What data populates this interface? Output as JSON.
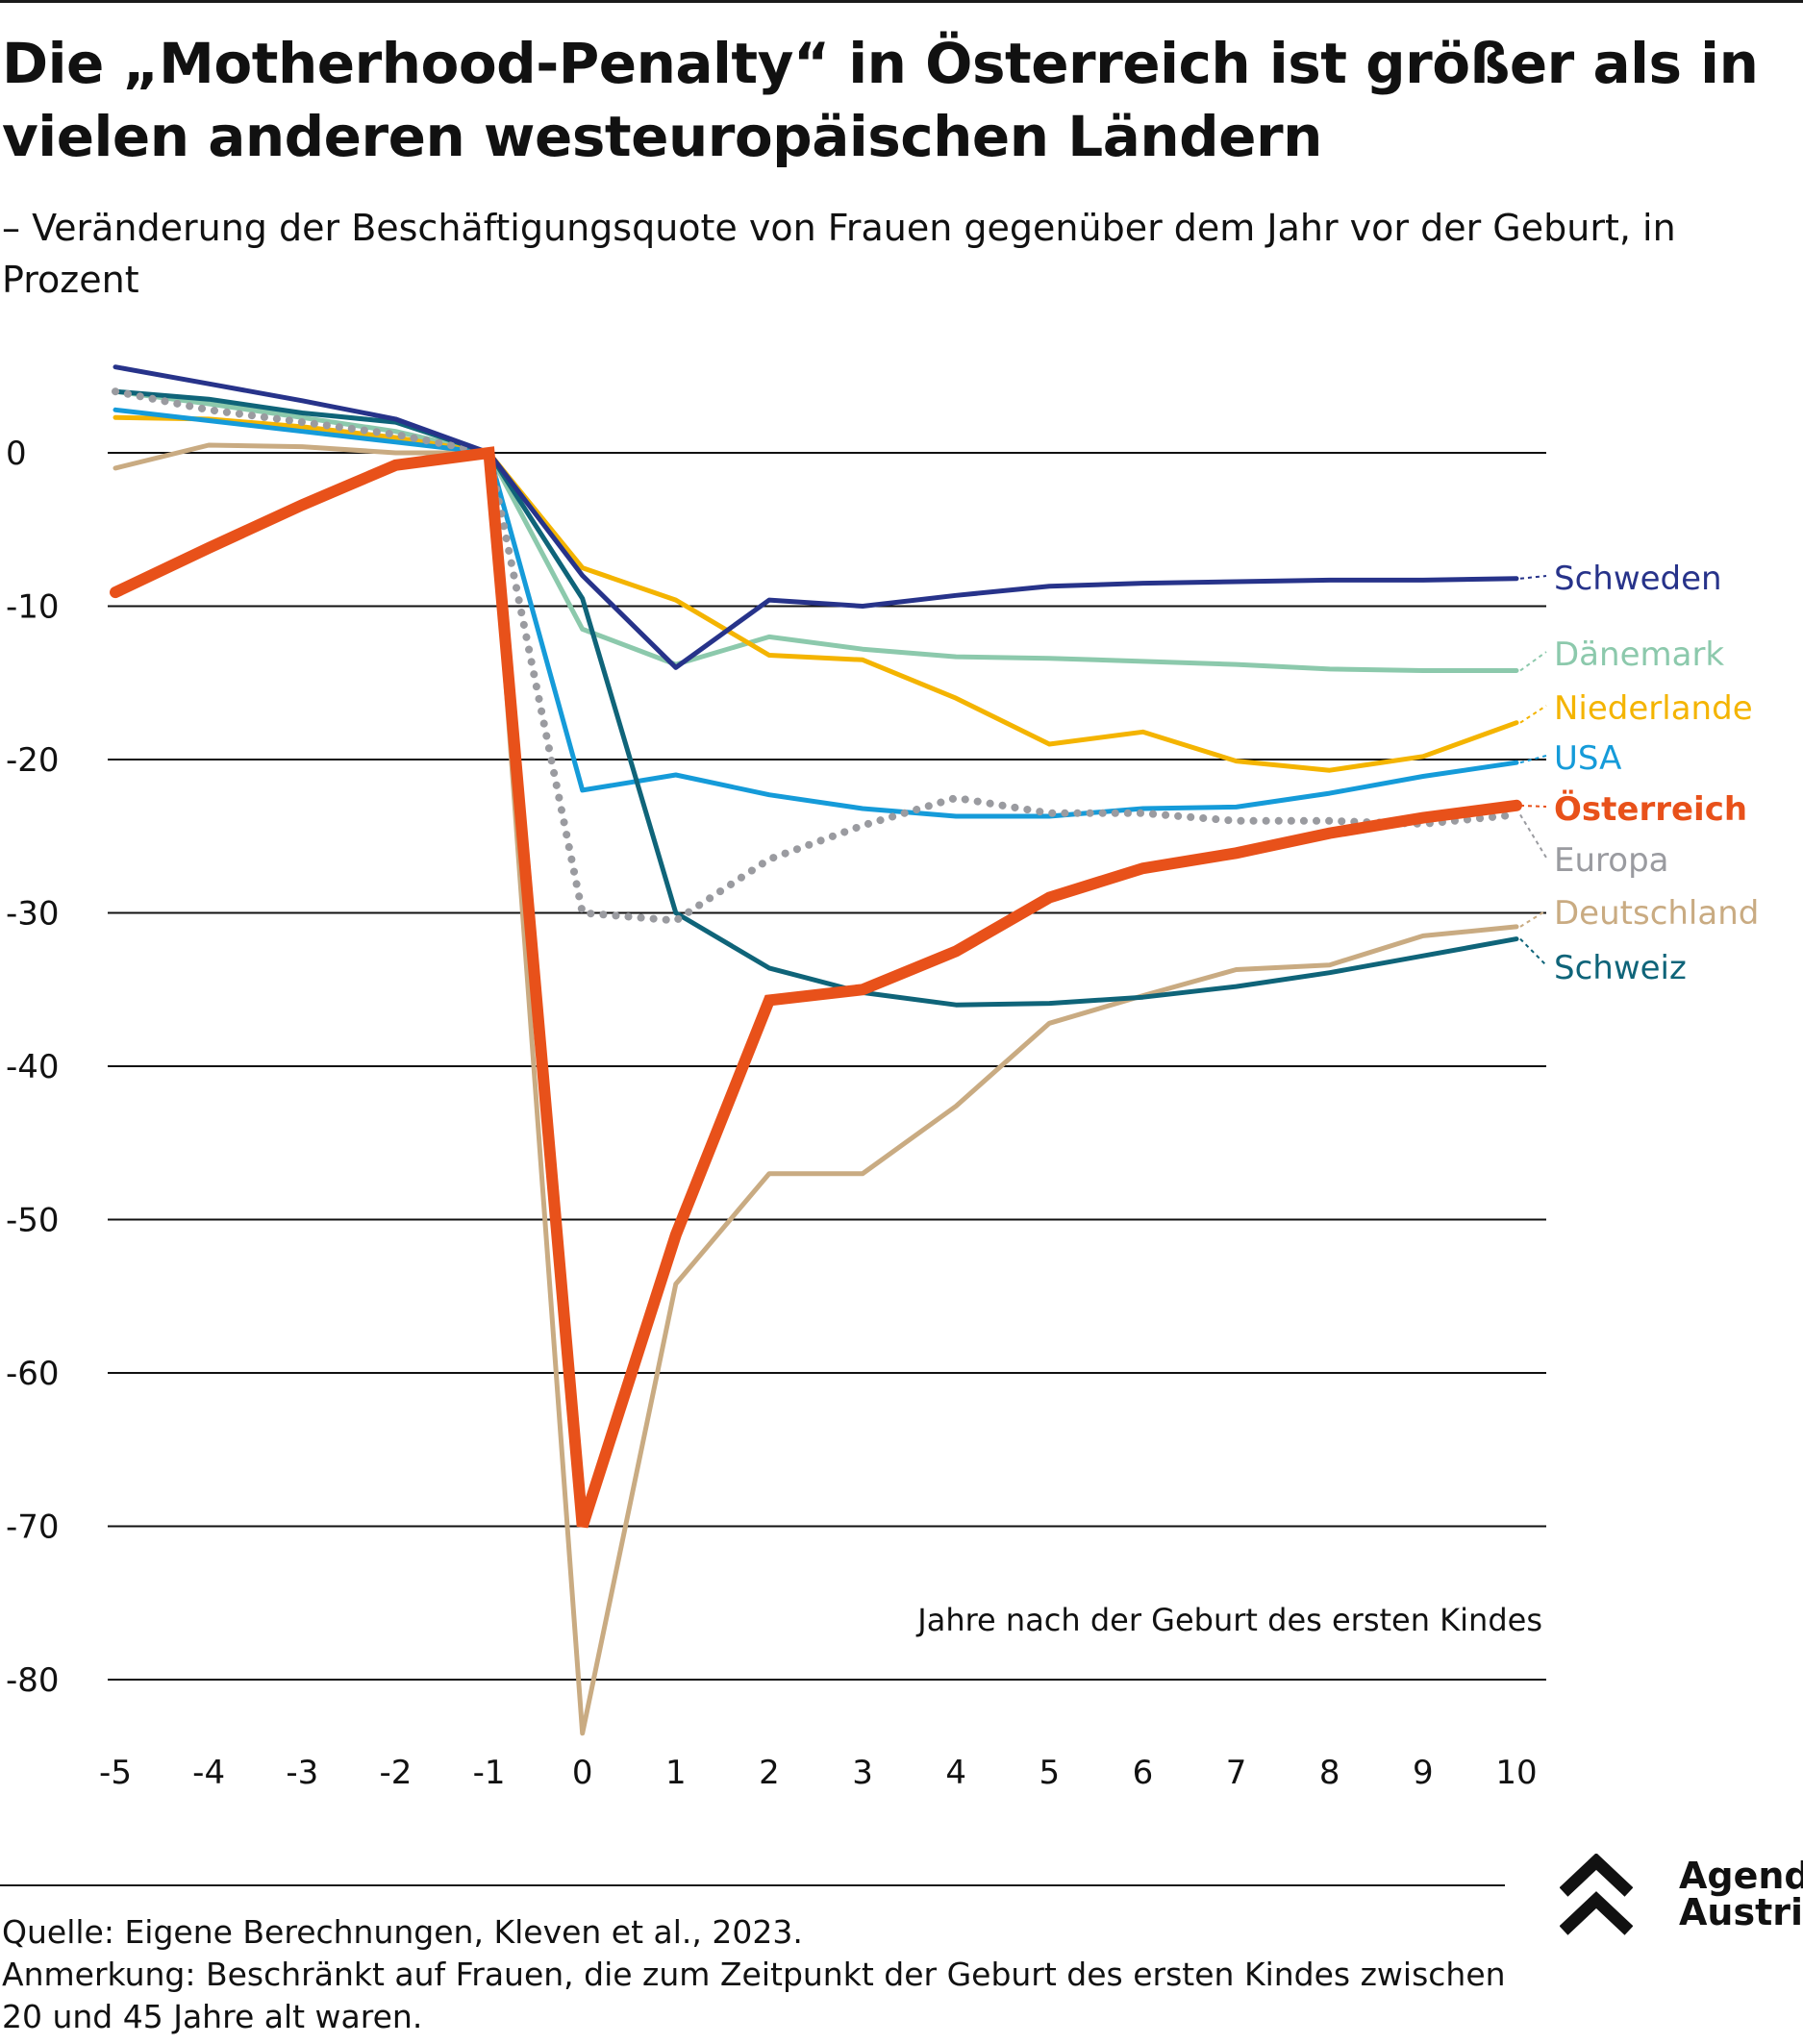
{
  "header": {
    "title": "Die „Motherhood-Penalty“ in Österreich ist größer als in vielen anderen westeuropäischen Ländern",
    "subtitle": "– Veränderung der Beschäftigungsquote von Frauen gegenüber dem Jahr vor der Geburt, in Prozent"
  },
  "chart_data": {
    "type": "line",
    "title": "Die „Motherhood-Penalty“ in Österreich ist größer als in vielen anderen westeuropäischen Ländern",
    "subtitle": "– Veränderung der Beschäftigungsquote von Frauen gegenüber dem Jahr vor der Geburt, in Prozent",
    "xlabel": "Jahre nach der Geburt des ersten Kindes",
    "ylabel": "",
    "x": [
      -5,
      -4,
      -3,
      -2,
      -1,
      0,
      1,
      2,
      3,
      4,
      5,
      6,
      7,
      8,
      9,
      10
    ],
    "xlim": [
      -5,
      10
    ],
    "ylim": [
      -85,
      6
    ],
    "yticks": [
      0,
      -10,
      -20,
      -30,
      -40,
      -50,
      -60,
      -70,
      -80
    ],
    "grid": "horizontal",
    "legend": "direct labels right",
    "series": [
      {
        "name": "Schweden",
        "color": "#27338a",
        "style": "solid",
        "width": "normal",
        "values": [
          5.6,
          4.5,
          3.4,
          2.2,
          0,
          -8,
          -14,
          -9.6,
          -10,
          -9.3,
          -8.7,
          -8.5,
          -8.4,
          -8.3,
          -8.3,
          -8.2
        ]
      },
      {
        "name": "Dänemark",
        "color": "#8cc9ac",
        "style": "solid",
        "width": "normal",
        "values": [
          4.0,
          3.2,
          2.3,
          1.4,
          0,
          -11.5,
          -13.8,
          -12,
          -12.8,
          -13.3,
          -13.4,
          -13.6,
          -13.8,
          -14.1,
          -14.2,
          -14.2
        ]
      },
      {
        "name": "Niederlande",
        "color": "#f4b400",
        "style": "solid",
        "width": "normal",
        "values": [
          2.3,
          2.2,
          1.7,
          1.0,
          0,
          -7.5,
          -9.6,
          -13.2,
          -13.5,
          -16,
          -19,
          -18.2,
          -20.1,
          -20.7,
          -19.8,
          -17.6
        ]
      },
      {
        "name": "USA",
        "color": "#159bd9",
        "style": "solid",
        "width": "normal",
        "values": [
          2.8,
          2.1,
          1.4,
          0.7,
          0,
          -22,
          -21,
          -22.3,
          -23.2,
          -23.7,
          -23.7,
          -23.2,
          -23.1,
          -22.2,
          -21.1,
          -20.2
        ]
      },
      {
        "name": "Österreich",
        "color": "#e8511a",
        "style": "solid",
        "width": "thick",
        "values": [
          -9.1,
          -6.2,
          -3.4,
          -0.8,
          0,
          -70,
          -51,
          -35.7,
          -35,
          -32.5,
          -29,
          -27.1,
          -26.1,
          -24.8,
          -23.8,
          -23
        ]
      },
      {
        "name": "Europa",
        "color": "#9a9ba0",
        "style": "dotted",
        "width": "normal",
        "values": [
          4.0,
          2.8,
          2.0,
          1.2,
          0,
          -30,
          -30.5,
          -26.5,
          -24.3,
          -22.5,
          -23.5,
          -23.5,
          -24,
          -24,
          -24.2,
          -23.6
        ]
      },
      {
        "name": "Deutschland",
        "color": "#c9ab82",
        "style": "solid",
        "width": "normal",
        "values": [
          -1,
          0.5,
          0.4,
          0,
          0,
          -83.5,
          -54.2,
          -47,
          -47,
          -42.6,
          -37.2,
          -35.4,
          -33.7,
          -33.4,
          -31.5,
          -30.9
        ]
      },
      {
        "name": "Schweiz",
        "color": "#0f6479",
        "style": "solid",
        "width": "normal",
        "values": [
          4.0,
          3.5,
          2.6,
          2.0,
          0,
          -9.5,
          -30,
          -33.6,
          -35.2,
          -36,
          -35.9,
          -35.5,
          -34.8,
          -33.9,
          -32.8,
          -31.7
        ]
      }
    ]
  },
  "footer": {
    "source": "Quelle: Eigene Berechnungen, Kleven et al., 2023.",
    "note": "Anmerkung: Beschränkt auf Frauen, die zum Zeitpunkt der Geburt des ersten Kindes zwischen 20 und 45 Jahre alt waren."
  },
  "brand": {
    "line1": "Agenda",
    "line2": "Austria",
    "logo_icon": "double-chevron-up-icon"
  }
}
